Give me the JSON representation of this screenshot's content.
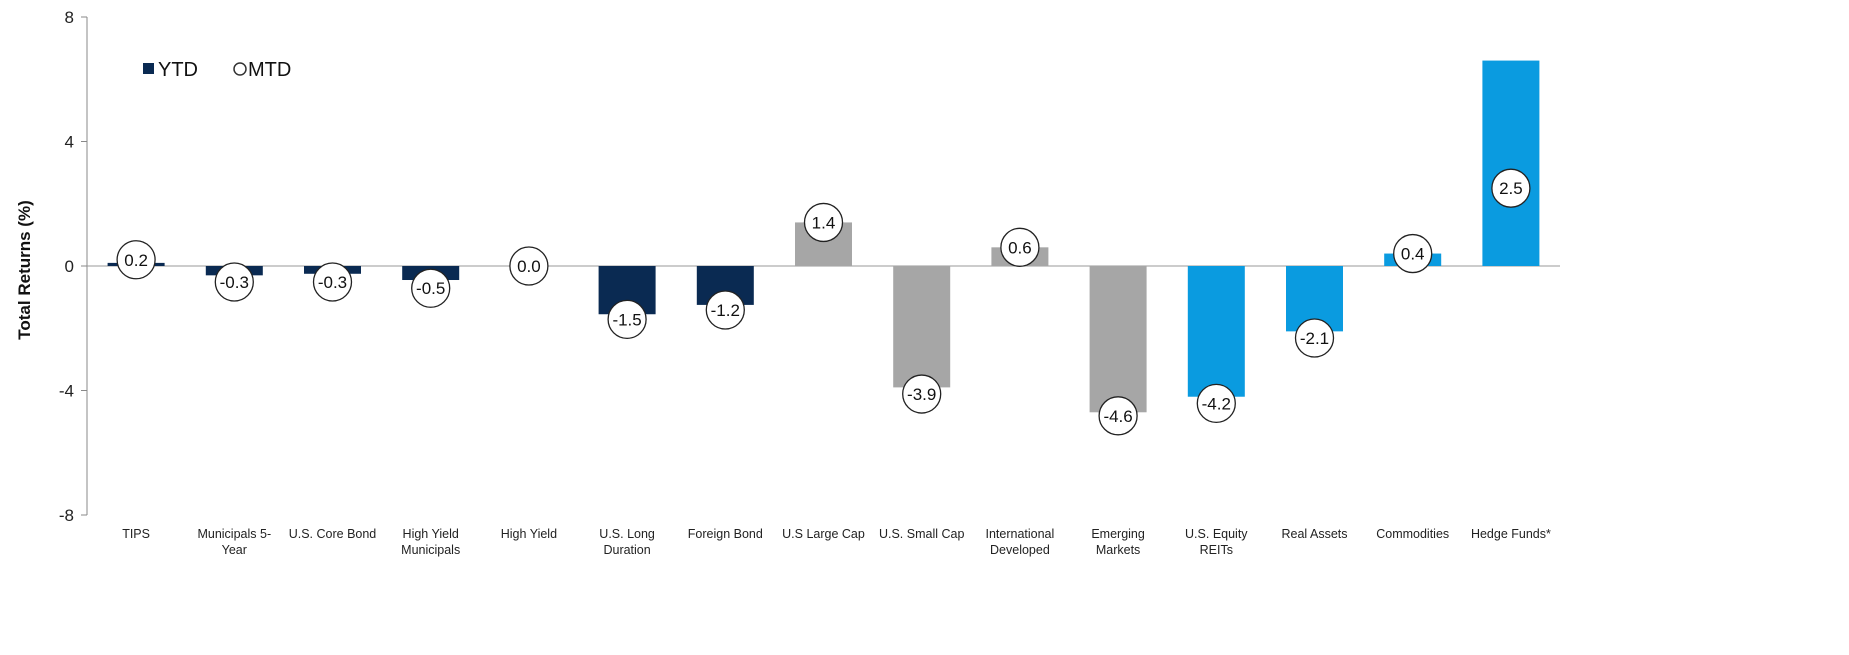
{
  "chart_data": {
    "type": "bar",
    "title": "",
    "ylabel": "Total Returns (%)",
    "xlabel": "",
    "ylim": [
      -8,
      8
    ],
    "yticks": [
      "8",
      "4",
      "0",
      "-4",
      "-8"
    ],
    "legend": {
      "placement": "top-left",
      "items": [
        {
          "name": "YTD",
          "marker": "square",
          "color": "#0a2a52"
        },
        {
          "name": "MTD",
          "marker": "circle",
          "color": "#ffffff"
        }
      ]
    },
    "categories": [
      [
        "TIPS"
      ],
      [
        "Municipals 5-",
        "Year"
      ],
      [
        "U.S. Core Bond"
      ],
      [
        "High Yield",
        "Municipals"
      ],
      [
        "High Yield"
      ],
      [
        "U.S. Long",
        "Duration"
      ],
      [
        "Foreign Bond"
      ],
      [
        "U.S Large Cap"
      ],
      [
        "U.S. Small Cap"
      ],
      [
        "International",
        "Developed"
      ],
      [
        "Emerging",
        "Markets"
      ],
      [
        "U.S. Equity",
        "REITs"
      ],
      [
        "Real Assets"
      ],
      [
        "Commodities"
      ],
      [
        "Hedge Funds*"
      ]
    ],
    "series": [
      {
        "name": "YTD",
        "values": [
          0.1,
          -0.3,
          -0.25,
          -0.45,
          0.0,
          -1.55,
          -1.25,
          1.4,
          -3.9,
          0.6,
          -4.7,
          -4.2,
          -2.1,
          0.4,
          6.6
        ]
      },
      {
        "name": "MTD",
        "values": [
          0.2,
          -0.3,
          -0.3,
          -0.5,
          0.0,
          -1.5,
          -1.2,
          1.4,
          -3.9,
          0.6,
          -4.6,
          -4.2,
          -2.1,
          0.4,
          2.5
        ]
      }
    ],
    "mtd_labels": [
      "0.2",
      "-0.3",
      "-0.3",
      "-0.5",
      "0.0",
      "-1.5",
      "-1.2",
      "1.4",
      "-3.9",
      "0.6",
      "-4.6",
      "-4.2",
      "-2.1",
      "0.4",
      "2.5"
    ],
    "bar_colors": [
      "#0a2a52",
      "#0a2a52",
      "#0a2a52",
      "#0a2a52",
      "#0a2a52",
      "#0a2a52",
      "#0a2a52",
      "#a6a6a6",
      "#a6a6a6",
      "#a6a6a6",
      "#a6a6a6",
      "#0a9be0",
      "#0a9be0",
      "#0a9be0",
      "#0a9be0"
    ],
    "grid": false
  }
}
